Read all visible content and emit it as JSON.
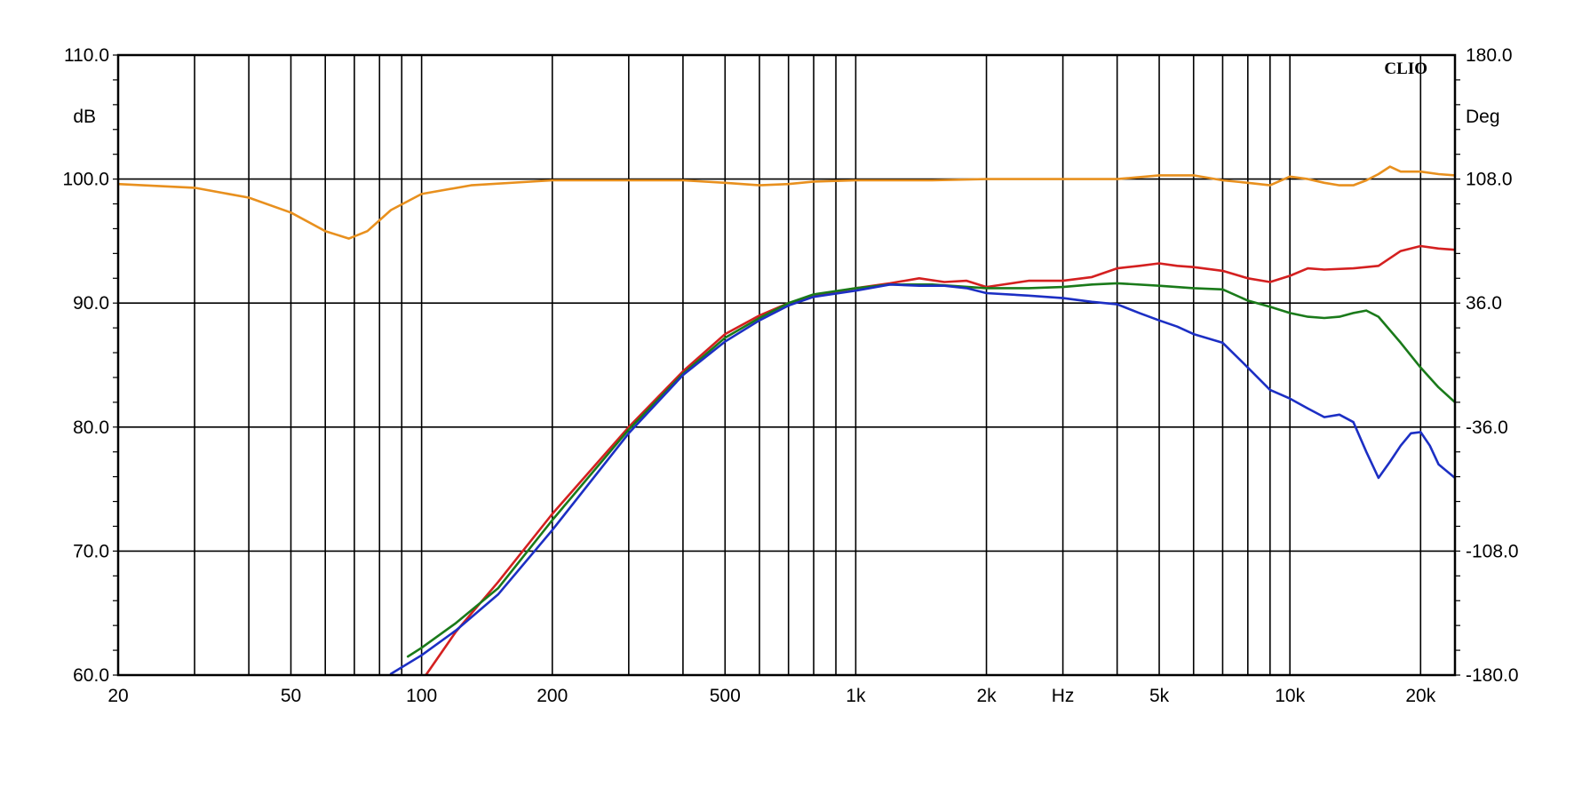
{
  "chart_data": {
    "type": "line",
    "title": "",
    "brand": "CLIO",
    "xlabel": "Hz",
    "ylabel_left": "dB",
    "ylabel_right": "Deg",
    "x_scale": "log",
    "xlim": [
      20,
      24000
    ],
    "ylim_left": [
      60,
      110
    ],
    "ylim_right": [
      -180,
      180
    ],
    "grid": true,
    "legend": "none",
    "x_ticks": [
      {
        "value": 20,
        "label": "20"
      },
      {
        "value": 50,
        "label": "50"
      },
      {
        "value": 100,
        "label": "100"
      },
      {
        "value": 200,
        "label": "200"
      },
      {
        "value": 500,
        "label": "500"
      },
      {
        "value": 1000,
        "label": "1k"
      },
      {
        "value": 2000,
        "label": "2k"
      },
      {
        "value": 5000,
        "label": "5k"
      },
      {
        "value": 10000,
        "label": "10k"
      },
      {
        "value": 20000,
        "label": "20k"
      }
    ],
    "x_hz_label_at": 3000,
    "x_grid": [
      20,
      30,
      40,
      50,
      60,
      70,
      80,
      90,
      100,
      200,
      300,
      400,
      500,
      600,
      700,
      800,
      900,
      1000,
      2000,
      3000,
      4000,
      5000,
      6000,
      7000,
      8000,
      9000,
      10000,
      20000
    ],
    "y_ticks_left": [
      {
        "value": 110,
        "label": "110.0"
      },
      {
        "value": 100,
        "label": "100.0"
      },
      {
        "value": 90,
        "label": "90.0"
      },
      {
        "value": 80,
        "label": "80.0"
      },
      {
        "value": 70,
        "label": "70.0"
      },
      {
        "value": 60,
        "label": "60.0"
      }
    ],
    "y_ticks_right": [
      {
        "value": 180,
        "label": "180.0"
      },
      {
        "value": 108,
        "label": "108.0"
      },
      {
        "value": 36,
        "label": "36.0"
      },
      {
        "value": -36,
        "label": "-36.0"
      },
      {
        "value": -108,
        "label": "-108.0"
      },
      {
        "value": -180,
        "label": "-180.0"
      }
    ],
    "series": [
      {
        "color": "#e8901e",
        "points": [
          [
            20,
            99.6
          ],
          [
            30,
            99.3
          ],
          [
            40,
            98.5
          ],
          [
            50,
            97.3
          ],
          [
            60,
            95.8
          ],
          [
            68,
            95.2
          ],
          [
            75,
            95.8
          ],
          [
            85,
            97.5
          ],
          [
            100,
            98.8
          ],
          [
            130,
            99.5
          ],
          [
            200,
            99.9
          ],
          [
            300,
            99.9
          ],
          [
            400,
            99.9
          ],
          [
            500,
            99.7
          ],
          [
            600,
            99.5
          ],
          [
            700,
            99.6
          ],
          [
            800,
            99.8
          ],
          [
            1000,
            99.9
          ],
          [
            1500,
            99.9
          ],
          [
            2000,
            100.0
          ],
          [
            3000,
            100.0
          ],
          [
            4000,
            100.0
          ],
          [
            5000,
            100.3
          ],
          [
            6000,
            100.3
          ],
          [
            7000,
            99.9
          ],
          [
            8000,
            99.7
          ],
          [
            9000,
            99.5
          ],
          [
            10000,
            100.2
          ],
          [
            11000,
            100.0
          ],
          [
            12000,
            99.7
          ],
          [
            13000,
            99.5
          ],
          [
            14000,
            99.5
          ],
          [
            15000,
            99.9
          ],
          [
            16000,
            100.4
          ],
          [
            17000,
            101.0
          ],
          [
            18000,
            100.6
          ],
          [
            20000,
            100.6
          ],
          [
            22000,
            100.4
          ],
          [
            24000,
            100.3
          ]
        ]
      },
      {
        "color": "#d42020",
        "points": [
          [
            100,
            59.5
          ],
          [
            120,
            63.5
          ],
          [
            150,
            67.5
          ],
          [
            200,
            73.0
          ],
          [
            300,
            80.0
          ],
          [
            400,
            84.5
          ],
          [
            500,
            87.5
          ],
          [
            600,
            89.0
          ],
          [
            700,
            90.0
          ],
          [
            800,
            90.6
          ],
          [
            1000,
            91.2
          ],
          [
            1200,
            91.6
          ],
          [
            1400,
            92.0
          ],
          [
            1600,
            91.7
          ],
          [
            1800,
            91.8
          ],
          [
            2000,
            91.3
          ],
          [
            2500,
            91.8
          ],
          [
            3000,
            91.8
          ],
          [
            3500,
            92.1
          ],
          [
            4000,
            92.8
          ],
          [
            4500,
            93.0
          ],
          [
            5000,
            93.2
          ],
          [
            5500,
            93.0
          ],
          [
            6000,
            92.9
          ],
          [
            7000,
            92.6
          ],
          [
            8000,
            92.0
          ],
          [
            9000,
            91.7
          ],
          [
            10000,
            92.2
          ],
          [
            11000,
            92.8
          ],
          [
            12000,
            92.7
          ],
          [
            14000,
            92.8
          ],
          [
            16000,
            93.0
          ],
          [
            18000,
            94.2
          ],
          [
            20000,
            94.6
          ],
          [
            22000,
            94.4
          ],
          [
            24000,
            94.3
          ]
        ]
      },
      {
        "color": "#1a7a1a",
        "points": [
          [
            93,
            61.5
          ],
          [
            100,
            62.2
          ],
          [
            120,
            64.2
          ],
          [
            150,
            67.0
          ],
          [
            200,
            72.5
          ],
          [
            300,
            79.8
          ],
          [
            400,
            84.3
          ],
          [
            500,
            87.2
          ],
          [
            600,
            88.8
          ],
          [
            700,
            90.0
          ],
          [
            800,
            90.7
          ],
          [
            1000,
            91.2
          ],
          [
            1200,
            91.5
          ],
          [
            1500,
            91.5
          ],
          [
            2000,
            91.2
          ],
          [
            2500,
            91.2
          ],
          [
            3000,
            91.3
          ],
          [
            3500,
            91.5
          ],
          [
            4000,
            91.6
          ],
          [
            5000,
            91.4
          ],
          [
            6000,
            91.2
          ],
          [
            7000,
            91.1
          ],
          [
            8000,
            90.2
          ],
          [
            9000,
            89.7
          ],
          [
            10000,
            89.2
          ],
          [
            11000,
            88.9
          ],
          [
            12000,
            88.8
          ],
          [
            13000,
            88.9
          ],
          [
            14000,
            89.2
          ],
          [
            15000,
            89.4
          ],
          [
            16000,
            88.9
          ],
          [
            18000,
            86.8
          ],
          [
            20000,
            84.8
          ],
          [
            22000,
            83.2
          ],
          [
            24000,
            82.0
          ]
        ]
      },
      {
        "color": "#1c2fc4",
        "points": [
          [
            85,
            60.1
          ],
          [
            100,
            61.6
          ],
          [
            120,
            63.6
          ],
          [
            150,
            66.5
          ],
          [
            200,
            71.7
          ],
          [
            300,
            79.5
          ],
          [
            400,
            84.2
          ],
          [
            500,
            86.9
          ],
          [
            600,
            88.6
          ],
          [
            700,
            89.8
          ],
          [
            800,
            90.5
          ],
          [
            1000,
            91.0
          ],
          [
            1200,
            91.5
          ],
          [
            1400,
            91.4
          ],
          [
            1600,
            91.4
          ],
          [
            1800,
            91.2
          ],
          [
            2000,
            90.8
          ],
          [
            2500,
            90.6
          ],
          [
            3000,
            90.4
          ],
          [
            3500,
            90.1
          ],
          [
            4000,
            89.9
          ],
          [
            4500,
            89.2
          ],
          [
            5000,
            88.6
          ],
          [
            5500,
            88.1
          ],
          [
            6000,
            87.5
          ],
          [
            7000,
            86.8
          ],
          [
            8000,
            84.8
          ],
          [
            9000,
            83.0
          ],
          [
            10000,
            82.3
          ],
          [
            11000,
            81.5
          ],
          [
            12000,
            80.8
          ],
          [
            13000,
            81.0
          ],
          [
            14000,
            80.4
          ],
          [
            15000,
            78.0
          ],
          [
            16000,
            75.9
          ],
          [
            17000,
            77.2
          ],
          [
            18000,
            78.5
          ],
          [
            19000,
            79.5
          ],
          [
            20000,
            79.6
          ],
          [
            21000,
            78.5
          ],
          [
            22000,
            77.0
          ],
          [
            24000,
            75.9
          ]
        ]
      }
    ]
  }
}
